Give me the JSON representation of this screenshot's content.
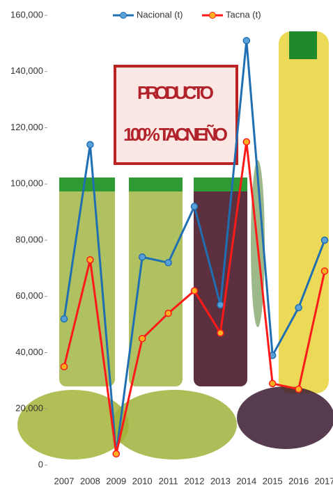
{
  "chart_data": {
    "type": "line",
    "categories": [
      "2007",
      "2008",
      "2009",
      "2010",
      "2011",
      "2012",
      "2013",
      "2014",
      "2015",
      "2016",
      "2017"
    ],
    "series": [
      {
        "name": "Nacional (t)",
        "color": "#1f6fb2",
        "values": [
          52000,
          114000,
          4000,
          74000,
          72000,
          92000,
          57000,
          151000,
          39000,
          56000,
          80000
        ]
      },
      {
        "name": "Tacna (t)",
        "color": "#ff1a1a",
        "values": [
          35000,
          73000,
          4000,
          45000,
          54000,
          62000,
          47000,
          115000,
          29000,
          27000,
          69000
        ]
      }
    ],
    "ylim": [
      0,
      160000
    ],
    "yticks": [
      0,
      {
        "value": 20000,
        "label": "20,000"
      },
      {
        "value": 40000,
        "label": "40,000"
      },
      {
        "value": 60000,
        "label": "60,000"
      },
      {
        "value": 80000,
        "label": "80,000"
      },
      {
        "value": 100000,
        "label": "100,000"
      },
      {
        "value": 120000,
        "label": "120,000"
      },
      {
        "value": 140000,
        "label": "140,000"
      },
      {
        "value": 160000,
        "label": "160,000"
      }
    ],
    "annotations": [
      "PRODUCTO",
      "100% TACNEÑO"
    ],
    "legend": "top"
  }
}
